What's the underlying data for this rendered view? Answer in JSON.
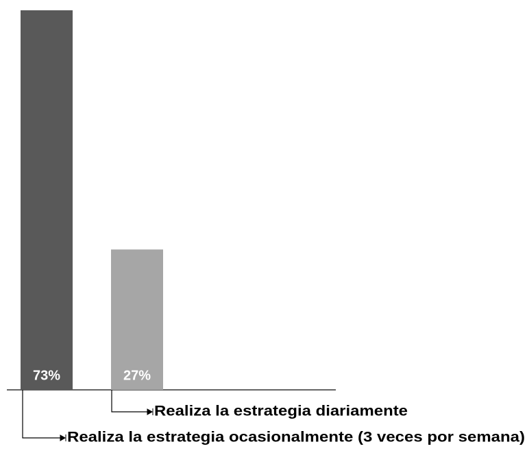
{
  "chart_data": {
    "type": "bar",
    "categories": [
      "Realiza la estrategia ocasionalmente (3 veces por semana)",
      "Realiza la estrategia diariamente"
    ],
    "values": [
      73,
      27
    ],
    "value_labels": [
      "73%",
      "27%"
    ],
    "colors": [
      "#595959",
      "#a6a6a6"
    ]
  }
}
